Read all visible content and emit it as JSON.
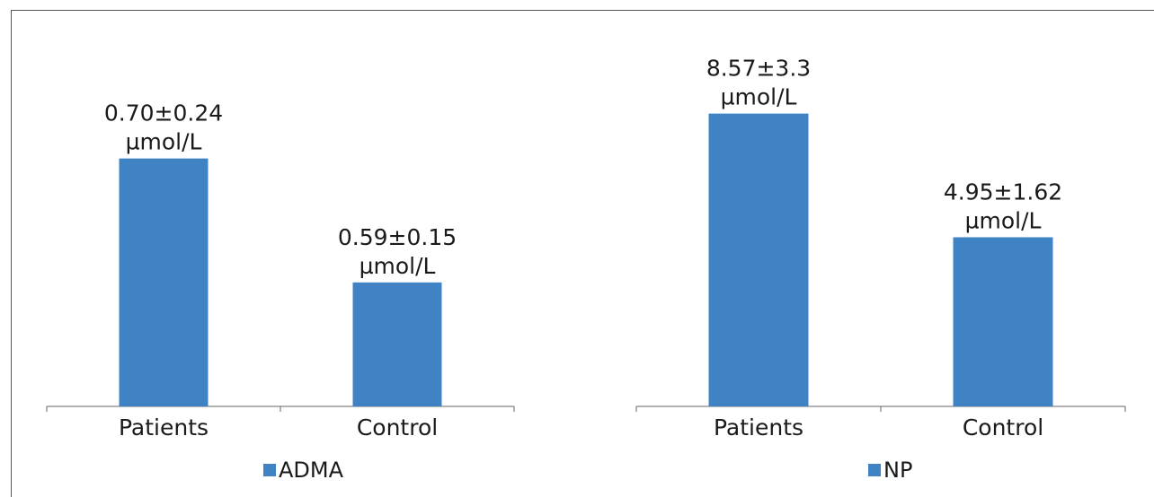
{
  "chart_data": [
    {
      "type": "bar",
      "categories": [
        "Patients",
        "Control"
      ],
      "series": [
        {
          "name": "ADMA",
          "values": [
            0.7,
            0.59
          ],
          "sd": [
            0.24,
            0.15
          ],
          "color": "#3f83c5"
        }
      ],
      "data_labels": [
        {
          "line1": "0.70±0.24",
          "line2": "µmol/L"
        },
        {
          "line1": "0.59±0.15",
          "line2": "µmol/L"
        }
      ],
      "axis_baseline": 0.48,
      "ylim_top": 0.765,
      "grid": false,
      "legend_position": "bottom"
    },
    {
      "type": "bar",
      "categories": [
        "Patients",
        "Control"
      ],
      "series": [
        {
          "name": "NP",
          "values": [
            8.57,
            4.95
          ],
          "sd": [
            3.3,
            1.62
          ],
          "color": "#3f83c5"
        }
      ],
      "data_labels": [
        {
          "line1": "8.57±3.3",
          "line2": "µmol/L"
        },
        {
          "line1": "4.95±1.62",
          "line2": "µmol/L"
        }
      ],
      "axis_baseline": 0,
      "ylim_top": 9.4,
      "grid": false,
      "legend_position": "bottom"
    }
  ]
}
